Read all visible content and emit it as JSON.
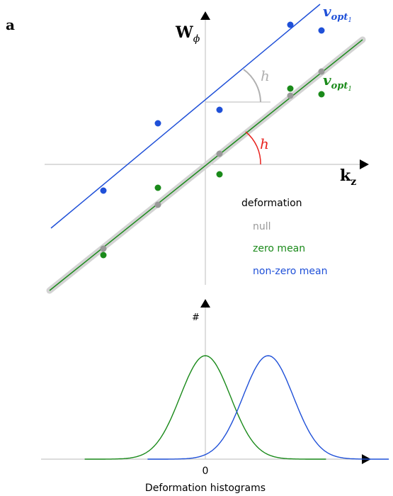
{
  "panel_label": "a",
  "top_plot": {
    "y_axis_label": "W",
    "y_axis_subscript": "ϕ",
    "x_axis_label": "k",
    "x_axis_subscript": "z",
    "line_label_symbol": "v",
    "line_label_subscript": "opt",
    "line_label_sub_index": "1",
    "angle_label": "h",
    "legend": {
      "title": "deformation",
      "items": [
        {
          "label": "null",
          "color": "#999999"
        },
        {
          "label": "zero mean",
          "color": "#1a8a1a"
        },
        {
          "label": "non-zero mean",
          "color": "#1f50d8"
        }
      ]
    },
    "colors": {
      "null": "#999999",
      "zero_mean": "#1a8a1a",
      "non_zero_mean": "#1f50d8",
      "angle": "#e8231f",
      "band": "#d3d3d3"
    }
  },
  "bottom_plot": {
    "y_axis_label": "#",
    "x_tick_label": "0",
    "x_axis_label": "Deformation histograms"
  },
  "chart_data": {
    "type": "line",
    "series": [
      {
        "color": "#1a8a1a",
        "mean": 0,
        "sd": 1
      },
      {
        "color": "#1f50d8",
        "mean": 2.5,
        "sd": 1
      }
    ],
    "ylim": [
      0,
      0.42
    ]
  }
}
